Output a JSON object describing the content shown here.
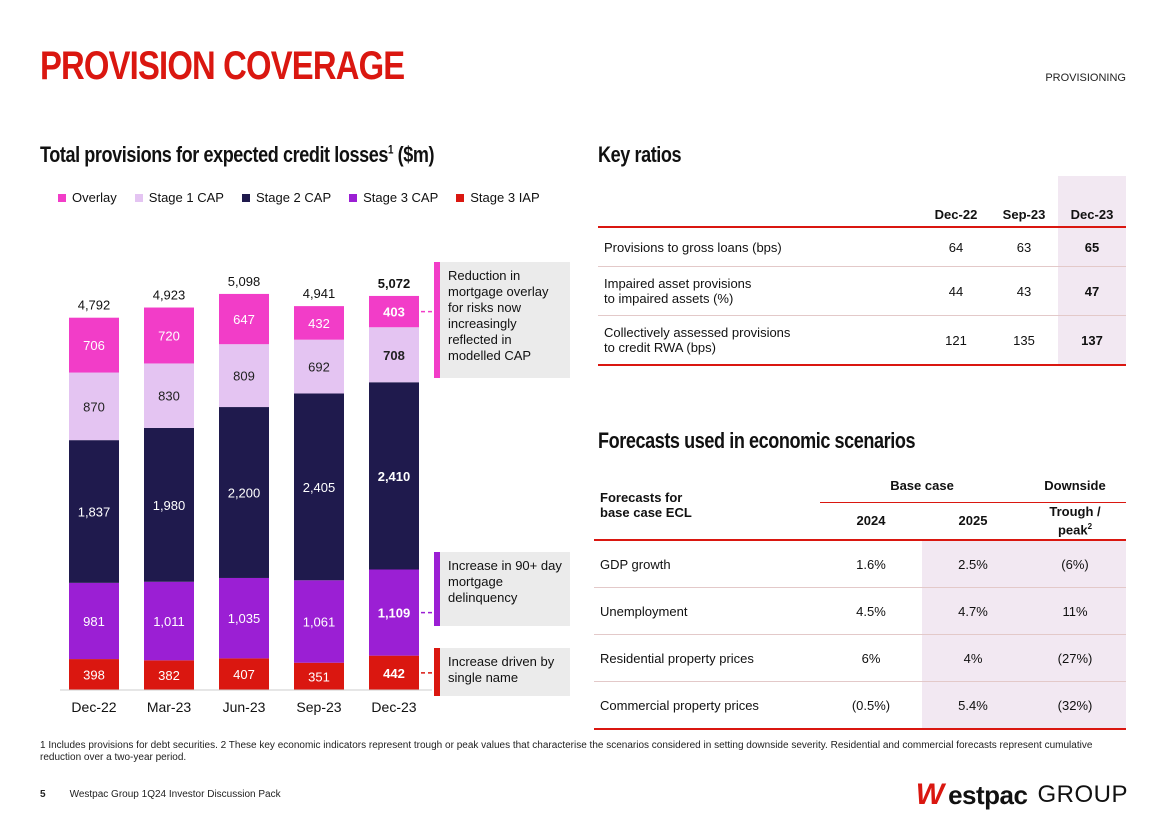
{
  "header": {
    "title": "PROVISION COVERAGE",
    "section": "PROVISIONING"
  },
  "left": {
    "heading": "Total provisions for expected credit losses",
    "heading_sup": "1",
    "heading_suffix": " ($m)"
  },
  "chart_data": {
    "type": "bar",
    "stacked": true,
    "title": "Total provisions for expected credit losses ($m)",
    "categories": [
      "Dec-22",
      "Mar-23",
      "Jun-23",
      "Sep-23",
      "Dec-23"
    ],
    "series": [
      {
        "name": "Stage 3 IAP",
        "color": "#DA1710",
        "values": [
          398,
          382,
          407,
          351,
          442
        ]
      },
      {
        "name": "Stage 3 CAP",
        "color": "#9B1FD4",
        "values": [
          981,
          1011,
          1035,
          1061,
          1109
        ]
      },
      {
        "name": "Stage 2 CAP",
        "color": "#1F1A4D",
        "values": [
          1837,
          1980,
          2200,
          2405,
          2410
        ]
      },
      {
        "name": "Stage 1 CAP",
        "color": "#E4C4F2",
        "values": [
          870,
          830,
          809,
          692,
          708
        ]
      },
      {
        "name": "Overlay",
        "color": "#F23DC8",
        "values": [
          706,
          720,
          647,
          432,
          403
        ]
      }
    ],
    "value_labels": [
      [
        "398",
        "382",
        "407",
        "351",
        "442"
      ],
      [
        "981",
        "1,011",
        "1,035",
        "1,061",
        "1,109"
      ],
      [
        "1,837",
        "1,980",
        "2,200",
        "2,405",
        "2,410"
      ],
      [
        "870",
        "830",
        "809",
        "692",
        "708"
      ],
      [
        "706",
        "720",
        "647",
        "432",
        "403"
      ]
    ],
    "totals": [
      "4,792",
      "4,923",
      "5,098",
      "4,941",
      "5,072"
    ],
    "legend_order": [
      "Overlay",
      "Stage 1 CAP",
      "Stage 2 CAP",
      "Stage 3 CAP",
      "Stage 3 IAP"
    ],
    "legend_position": "top-left",
    "ylim": [
      0,
      5200
    ],
    "grid": false,
    "bold_category": "Dec-23"
  },
  "callouts": [
    {
      "text": "Reduction in mortgage overlay for risks now increasingly reflected in modelled CAP",
      "color": "#F23DC8"
    },
    {
      "text": "Increase in 90+ day mortgage delinquency",
      "color": "#9B1FD4"
    },
    {
      "text": "Increase driven by single name",
      "color": "#DA1710"
    }
  ],
  "key_ratios": {
    "heading": "Key ratios",
    "columns": [
      "Dec-22",
      "Sep-23",
      "Dec-23"
    ],
    "rows": [
      {
        "label1": "Provisions to gross loans (bps)",
        "label2": "",
        "values": [
          "64",
          "63",
          "65"
        ]
      },
      {
        "label1": "Impaired asset provisions",
        "label2": "to impaired assets (%)",
        "values": [
          "44",
          "43",
          "47"
        ]
      },
      {
        "label1": "Collectively assessed provisions",
        "label2": "to credit RWA (bps)",
        "values": [
          "121",
          "135",
          "137"
        ]
      }
    ]
  },
  "forecasts": {
    "heading": "Forecasts used in economic scenarios",
    "corner1": "Forecasts for",
    "corner2": "base case ECL",
    "group_base": "Base case",
    "group_down": "Downside",
    "col_2024": "2024",
    "col_2025": "2025",
    "col_trough": "Trough /",
    "col_peak": "peak",
    "col_peak_sup": "2",
    "rows": [
      {
        "label": "GDP growth",
        "values": [
          "1.6%",
          "2.5%",
          "(6%)"
        ]
      },
      {
        "label": "Unemployment",
        "values": [
          "4.5%",
          "4.7%",
          "11%"
        ]
      },
      {
        "label": "Residential property prices",
        "values": [
          "6%",
          "4%",
          "(27%)"
        ]
      },
      {
        "label": "Commercial property prices",
        "values": [
          "(0.5%)",
          "5.4%",
          "(32%)"
        ]
      }
    ]
  },
  "footnote": "1 Includes provisions for debt securities. 2 These key economic indicators represent trough or peak values that characterise the scenarios considered in setting downside severity. Residential and commercial forecasts represent cumulative reduction over a two-year period.",
  "footer": {
    "page": "5",
    "doc": "Westpac Group 1Q24 Investor Discussion Pack"
  },
  "logo": {
    "w": "W",
    "estpac": "estpac",
    "group": "GROUP"
  }
}
